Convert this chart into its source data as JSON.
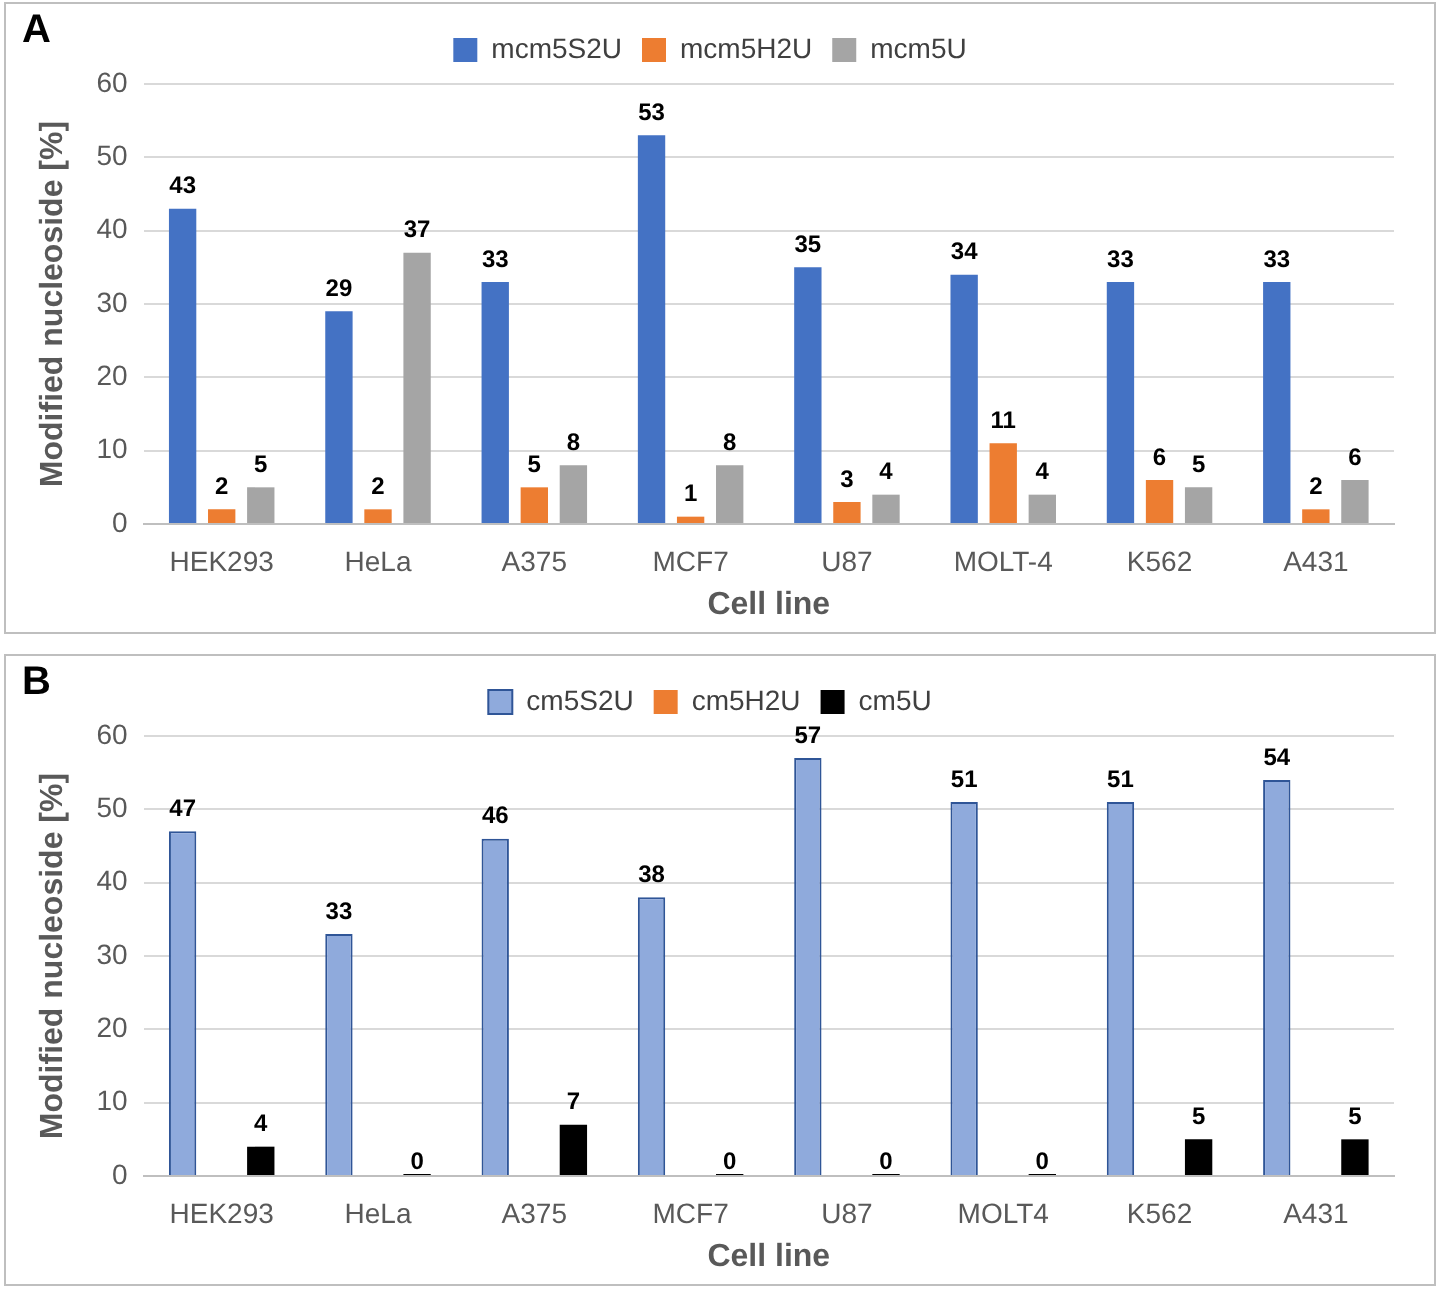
{
  "chart_data": [
    {
      "type": "bar",
      "title": "A",
      "xlabel": "Cell line",
      "ylabel": "Modified nucleoside [%]",
      "categories": [
        "HEK293",
        "HeLa",
        "A375",
        "MCF7",
        "U87",
        "MOLT-4",
        "K562",
        "A431"
      ],
      "series": [
        {
          "name": "mcm5S2U",
          "color": "#4472c4",
          "values": [
            43,
            29,
            33,
            53,
            35,
            34,
            33,
            33
          ]
        },
        {
          "name": "mcm5H2U",
          "color": "#ed7d31",
          "values": [
            2,
            2,
            5,
            1,
            3,
            11,
            6,
            2
          ]
        },
        {
          "name": "mcm5U",
          "color": "#a5a5a5",
          "values": [
            5,
            37,
            8,
            8,
            4,
            4,
            5,
            6
          ]
        }
      ],
      "ylim": [
        0,
        60
      ],
      "yticks": [
        0,
        10,
        20,
        30,
        40,
        50,
        60
      ],
      "grid": "y",
      "legend": "top",
      "data_labels": true
    },
    {
      "type": "bar",
      "title": "B",
      "xlabel": "Cell line",
      "ylabel": "Modified nucleoside [%]",
      "categories": [
        "HEK293",
        "HeLa",
        "A375",
        "MCF7",
        "U87",
        "MOLT4",
        "K562",
        "A431"
      ],
      "series": [
        {
          "name": "cm5S2U",
          "color": "#8faadc",
          "values": [
            47,
            33,
            46,
            38,
            57,
            51,
            51,
            54
          ]
        },
        {
          "name": "cm5H2U",
          "color": "#ed7d31",
          "values": [
            null,
            null,
            null,
            null,
            null,
            null,
            null,
            null
          ]
        },
        {
          "name": "cm5U",
          "color": "#000000",
          "values": [
            4,
            0,
            7,
            0,
            0,
            0,
            5,
            5
          ]
        }
      ],
      "ylim": [
        0,
        60
      ],
      "yticks": [
        0,
        10,
        20,
        30,
        40,
        50,
        60
      ],
      "grid": "y",
      "legend": "top",
      "data_labels": true
    }
  ]
}
